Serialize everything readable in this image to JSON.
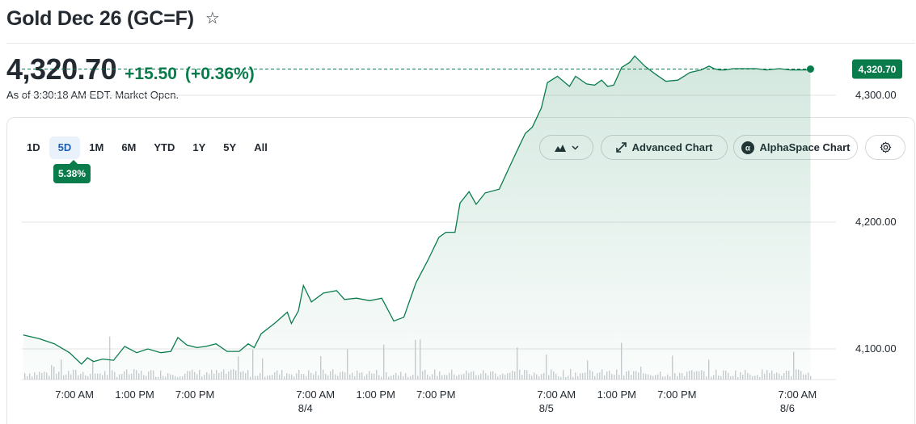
{
  "header": {
    "title": "Gold Dec 26 (GC=F)",
    "star_icon": "star-outline-icon"
  },
  "quote": {
    "price": "4,320.70",
    "change": "+15.50",
    "change_percent": "(+0.36%)",
    "as_of": "As of 3:30:18 AM EDT. Market Open.",
    "change_color": "#0a7c4c"
  },
  "range_tabs": [
    {
      "label": "1D",
      "active": false
    },
    {
      "label": "5D",
      "active": true
    },
    {
      "label": "1M",
      "active": false
    },
    {
      "label": "6M",
      "active": false
    },
    {
      "label": "YTD",
      "active": false
    },
    {
      "label": "1Y",
      "active": false
    },
    {
      "label": "5Y",
      "active": false
    },
    {
      "label": "All",
      "active": false
    }
  ],
  "range_change": "5.38%",
  "toolbar": {
    "chart_type_icon": "mountain-chart-icon",
    "advanced_chart_label": "Advanced Chart",
    "advanced_chart_icon": "expand-arrows-icon",
    "alphaspace_chart_label": "AlphaSpace Chart",
    "alphaspace_icon": "alpha-logo-icon",
    "settings_icon": "gear-icon"
  },
  "chart_data": {
    "type": "area",
    "title": "",
    "xlabel": "",
    "ylabel": "",
    "ylim": [
      4070,
      4350
    ],
    "yticks": [
      "4,100.00",
      "4,200.00",
      "4,300.00"
    ],
    "ytick_values": [
      4100,
      4200,
      4300
    ],
    "current_value": 4320.7,
    "current_label": "4,320.70",
    "line_color": "#0a7c4c",
    "grid": true,
    "x_time_labels": [
      "7:00 AM",
      "1:00 PM",
      "7:00 PM",
      "7:00 AM",
      "1:00 PM",
      "7:00 PM",
      "7:00 AM",
      "1:00 PM",
      "7:00 PM",
      "7:00 AM"
    ],
    "x_time_label_hours": [
      13,
      19,
      25,
      37,
      43,
      49,
      61,
      67,
      73,
      85
    ],
    "x_date_labels": [
      "8/4",
      "8/5",
      "8/6"
    ],
    "x_date_label_hours": [
      36,
      60,
      84
    ],
    "x_unit": "hours since 8/3 6:00 PM",
    "series": [
      {
        "x": [
          7.9,
          9.5,
          11,
          12.5,
          13.7,
          14.3,
          14.9,
          15.8,
          16.9,
          18,
          19.2,
          20.3,
          21.6,
          22.6,
          23.3,
          24.2,
          25.2,
          26.1,
          27.1,
          28.2,
          29.4,
          30.3,
          30.9,
          31.6,
          32.9,
          34.2,
          34.6,
          35.3,
          35.8,
          36.6,
          37.8,
          39.1,
          39.9,
          41.1,
          42.4,
          43.6,
          44.8,
          45.8,
          47,
          48.2,
          49.3,
          50,
          50.9,
          51.4,
          52.3,
          53,
          53.9,
          55.3,
          56.7,
          57.3,
          57.9,
          58.6,
          59.5,
          60.1,
          61.1,
          62.3,
          62.9,
          64,
          64.8,
          65.5,
          66.1,
          66.7,
          67.5,
          68.3,
          68.8,
          69.8,
          70.8,
          71.9,
          73.1,
          74.3,
          75.4,
          76.2,
          76.7,
          77.2,
          77.8,
          78.6,
          79.7,
          80.9,
          81.9,
          83.2,
          84.3,
          85.4,
          86.3
        ],
        "values": [
          4111,
          4108,
          4104,
          4097,
          4088,
          4093,
          4090,
          4092,
          4091,
          4102,
          4097,
          4100,
          4097,
          4098,
          4109,
          4103,
          4101,
          4102,
          4104,
          4098,
          4098,
          4104,
          4101,
          4112,
          4120,
          4129,
          4120,
          4130,
          4150,
          4137,
          4144,
          4146,
          4139,
          4140,
          4138,
          4140,
          4122,
          4125,
          4152,
          4170,
          4188,
          4192,
          4192,
          4215,
          4224,
          4214,
          4223,
          4226,
          4250,
          4260,
          4270,
          4275,
          4290,
          4310,
          4315,
          4307,
          4315,
          4309,
          4308,
          4312,
          4307,
          4308,
          4322,
          4326,
          4331,
          4323,
          4317,
          4311,
          4312,
          4318,
          4320,
          4323,
          4321,
          4320,
          4320,
          4321,
          4321,
          4321,
          4320,
          4321,
          4320,
          4320,
          4320
        ]
      }
    ]
  }
}
